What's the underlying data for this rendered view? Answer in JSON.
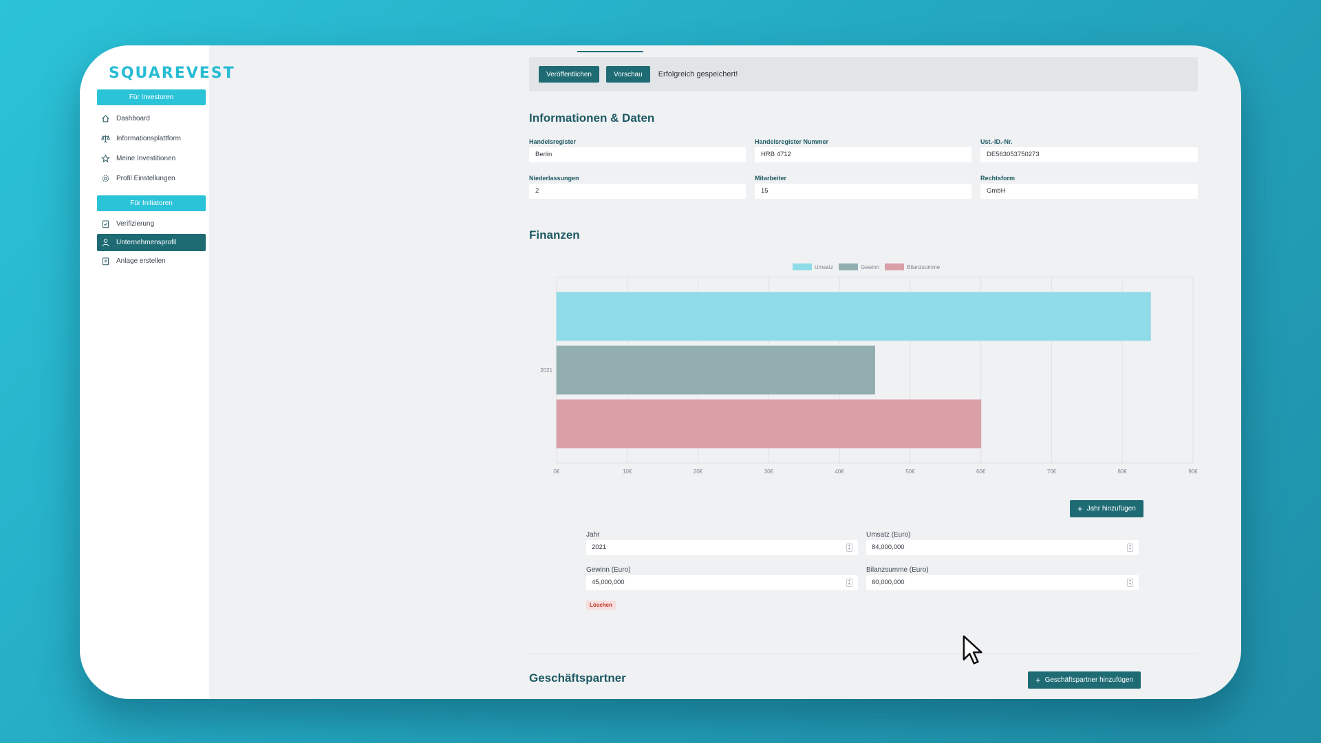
{
  "brand": {
    "logo_text": "SQUAREVEST",
    "accent_color": "#2bc3d8",
    "dark_color": "#1e6b74"
  },
  "sidebar": {
    "investors_section": "Für Investoren",
    "initiators_section": "Für Initiatoren",
    "investor_items": [
      {
        "label": "Dashboard",
        "icon": "home-icon"
      },
      {
        "label": "Informationsplattform",
        "icon": "scale-icon"
      },
      {
        "label": "Meine Investitionen",
        "icon": "star-icon"
      },
      {
        "label": "Profil Einstellungen",
        "icon": "gear-icon"
      }
    ],
    "initiator_items": [
      {
        "label": "Verifizierung",
        "icon": "clipboard-check-icon"
      },
      {
        "label": "Unternehmensprofil",
        "icon": "user-icon",
        "active": true
      },
      {
        "label": "Anlage erstellen",
        "icon": "clipboard-icon"
      }
    ]
  },
  "toolbar": {
    "publish_label": "Veröffentlichen",
    "preview_label": "Vorschau",
    "status_text": "Erfolgreich gespeichert!"
  },
  "info": {
    "heading": "Informationen & Daten",
    "fields": {
      "handelsregister": {
        "label": "Handelsregister",
        "value": "Berlin"
      },
      "handelsregister_nummer": {
        "label": "Handelsregister Nummer",
        "value": "HRB 4712"
      },
      "ust_id": {
        "label": "Ust.-ID.-Nr.",
        "value": "DE563053750273"
      },
      "niederlassungen": {
        "label": "Niederlassungen",
        "value": "2"
      },
      "mitarbeiter": {
        "label": "Mitarbeiter",
        "value": "15"
      },
      "rechtsform": {
        "label": "Rechtsform",
        "value": "GmbH"
      }
    }
  },
  "finance": {
    "heading": "Finanzen",
    "add_year_label": "Jahr hinzufügen",
    "year_label": "Jahr",
    "year_value": "2021",
    "revenue_label": "Umsatz (Euro)",
    "revenue_value": "84,000,000",
    "profit_label": "Gewinn (Euro)",
    "profit_value": "45,000,000",
    "balance_label": "Bilanzsumme (Euro)",
    "balance_value": "60,000,000",
    "delete_label": "Löschen"
  },
  "chart_data": {
    "type": "bar",
    "orientation": "horizontal",
    "categories": [
      "2021"
    ],
    "series": [
      {
        "name": "Umsatz",
        "values": [
          84000000
        ],
        "color": "#8fdbe7"
      },
      {
        "name": "Gewinn",
        "values": [
          45000000
        ],
        "color": "#93aeb1"
      },
      {
        "name": "Bilanzsumme",
        "values": [
          60000000
        ],
        "color": "#d9a0a8"
      }
    ],
    "xlim": [
      0,
      90000000
    ],
    "x_ticks": [
      "0€",
      "10€",
      "20€",
      "30€",
      "40€",
      "50€",
      "60€",
      "70€",
      "80€",
      "90€"
    ],
    "legend_position": "top-center",
    "grid": true
  },
  "partners": {
    "heading": "Geschäftspartner",
    "add_label": "Geschäftspartner hinzufügen"
  }
}
